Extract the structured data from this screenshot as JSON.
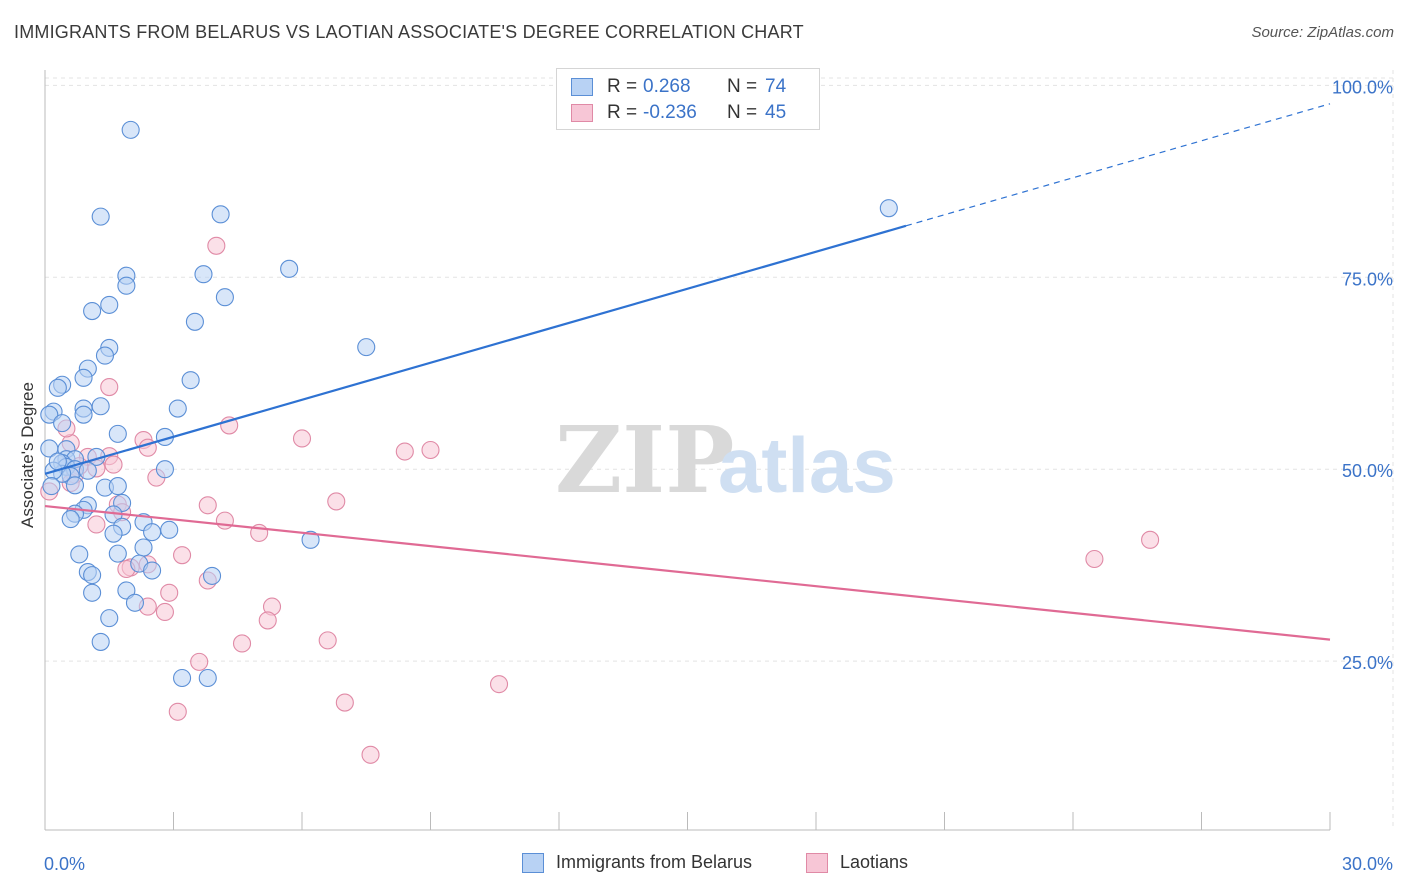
{
  "title": "IMMIGRANTS FROM BELARUS VS LAOTIAN ASSOCIATE'S DEGREE CORRELATION CHART",
  "source": "Source: ZipAtlas.com",
  "watermark": {
    "zip": "ZIP",
    "atlas": "atlas"
  },
  "colors": {
    "blue_fill": "#b8d2f4",
    "blue_stroke": "#5b8fd6",
    "blue_line": "#2e72d2",
    "pink_fill": "#f7c6d6",
    "pink_stroke": "#e08aa6",
    "pink_line": "#e06a94",
    "tick_label": "#3b73c8",
    "grid": "#e3e3e3"
  },
  "legend": {
    "rows": [
      {
        "r_label": "R =",
        "r_value": "0.268",
        "n_label": "N =",
        "n_value": "74",
        "color": "blue"
      },
      {
        "r_label": "R =",
        "r_value": "-0.236",
        "n_label": "N =",
        "n_value": "45",
        "color": "pink"
      }
    ]
  },
  "bottom_legend": [
    {
      "label": "Immigrants from Belarus",
      "color": "blue"
    },
    {
      "label": "Laotians",
      "color": "pink"
    }
  ],
  "chart_data": {
    "type": "scatter",
    "title": "IMMIGRANTS FROM BELARUS VS LAOTIAN ASSOCIATE'S DEGREE CORRELATION CHART",
    "xlabel": "",
    "ylabel": "Associate's Degree",
    "xlim": [
      0,
      30
    ],
    "ylim": [
      3,
      102
    ],
    "x_tick_labels": [
      "0.0%",
      "30.0%"
    ],
    "y_ticks": [
      25,
      50,
      75,
      100
    ],
    "y_tick_labels": [
      "25.0%",
      "50.0%",
      "75.0%",
      "100.0%"
    ],
    "grid": true,
    "legend_position": "top-center",
    "series": [
      {
        "name": "Immigrants from Belarus",
        "color": "blue",
        "trend": {
          "x": [
            0,
            20.1
          ],
          "y": [
            49.4,
            81.7
          ],
          "dashed_to": [
            30,
            97.6
          ]
        },
        "points": [
          [
            2.0,
            94.2
          ],
          [
            1.3,
            82.9
          ],
          [
            4.1,
            83.2
          ],
          [
            1.9,
            75.2
          ],
          [
            1.9,
            73.9
          ],
          [
            1.5,
            71.4
          ],
          [
            1.1,
            70.6
          ],
          [
            3.7,
            75.4
          ],
          [
            4.2,
            72.4
          ],
          [
            5.7,
            76.1
          ],
          [
            3.5,
            69.2
          ],
          [
            19.7,
            84.0
          ],
          [
            1.5,
            65.8
          ],
          [
            1.4,
            64.8
          ],
          [
            7.5,
            65.9
          ],
          [
            1.0,
            63.1
          ],
          [
            0.9,
            61.9
          ],
          [
            0.4,
            61.0
          ],
          [
            0.3,
            60.6
          ],
          [
            3.4,
            61.6
          ],
          [
            1.3,
            58.2
          ],
          [
            0.9,
            57.9
          ],
          [
            0.2,
            57.5
          ],
          [
            0.1,
            57.1
          ],
          [
            0.9,
            57.1
          ],
          [
            3.1,
            57.9
          ],
          [
            0.4,
            56.0
          ],
          [
            1.7,
            54.6
          ],
          [
            2.8,
            54.2
          ],
          [
            0.1,
            52.7
          ],
          [
            0.5,
            52.6
          ],
          [
            0.5,
            51.3
          ],
          [
            0.7,
            51.3
          ],
          [
            1.2,
            51.6
          ],
          [
            0.4,
            50.8
          ],
          [
            0.5,
            50.3
          ],
          [
            0.7,
            50.0
          ],
          [
            0.6,
            49.1
          ],
          [
            0.4,
            49.4
          ],
          [
            0.2,
            49.8
          ],
          [
            2.8,
            50.0
          ],
          [
            0.7,
            47.9
          ],
          [
            1.4,
            47.6
          ],
          [
            1.7,
            47.8
          ],
          [
            1.0,
            45.3
          ],
          [
            1.8,
            45.6
          ],
          [
            0.9,
            44.7
          ],
          [
            0.7,
            44.2
          ],
          [
            1.6,
            44.1
          ],
          [
            0.6,
            43.5
          ],
          [
            2.3,
            43.1
          ],
          [
            1.8,
            42.5
          ],
          [
            1.6,
            41.6
          ],
          [
            2.5,
            41.8
          ],
          [
            2.9,
            42.1
          ],
          [
            6.2,
            40.8
          ],
          [
            2.3,
            39.8
          ],
          [
            0.8,
            38.9
          ],
          [
            1.7,
            39.0
          ],
          [
            2.2,
            37.7
          ],
          [
            1.0,
            36.6
          ],
          [
            2.5,
            36.8
          ],
          [
            1.1,
            36.2
          ],
          [
            3.9,
            36.1
          ],
          [
            1.9,
            34.2
          ],
          [
            1.1,
            33.9
          ],
          [
            2.1,
            32.6
          ],
          [
            1.5,
            30.6
          ],
          [
            1.3,
            27.5
          ],
          [
            3.2,
            22.8
          ],
          [
            3.8,
            22.8
          ],
          [
            0.15,
            47.8
          ],
          [
            0.3,
            51.0
          ],
          [
            1.0,
            49.8
          ]
        ]
      },
      {
        "name": "Laotians",
        "color": "pink",
        "trend": {
          "x": [
            0,
            30
          ],
          "y": [
            45.2,
            27.8
          ]
        },
        "points": [
          [
            4.0,
            79.1
          ],
          [
            1.5,
            60.7
          ],
          [
            4.3,
            55.7
          ],
          [
            6.0,
            54.0
          ],
          [
            2.3,
            53.8
          ],
          [
            0.6,
            53.4
          ],
          [
            0.5,
            55.3
          ],
          [
            8.4,
            52.3
          ],
          [
            9.0,
            52.5
          ],
          [
            2.4,
            52.8
          ],
          [
            1.0,
            51.6
          ],
          [
            1.5,
            51.7
          ],
          [
            1.6,
            50.6
          ],
          [
            0.8,
            50.4
          ],
          [
            1.2,
            50.1
          ],
          [
            0.7,
            49.3
          ],
          [
            2.6,
            48.9
          ],
          [
            0.6,
            48.2
          ],
          [
            0.1,
            47.1
          ],
          [
            6.8,
            45.8
          ],
          [
            3.8,
            45.3
          ],
          [
            1.7,
            45.4
          ],
          [
            1.8,
            44.4
          ],
          [
            4.2,
            43.3
          ],
          [
            1.2,
            42.8
          ],
          [
            5.0,
            41.7
          ],
          [
            25.8,
            40.8
          ],
          [
            3.2,
            38.8
          ],
          [
            24.5,
            38.3
          ],
          [
            2.4,
            37.6
          ],
          [
            2.0,
            37.2
          ],
          [
            3.8,
            35.5
          ],
          [
            2.9,
            33.9
          ],
          [
            2.4,
            32.1
          ],
          [
            5.3,
            32.1
          ],
          [
            2.8,
            31.4
          ],
          [
            5.2,
            30.3
          ],
          [
            6.6,
            27.7
          ],
          [
            4.6,
            27.3
          ],
          [
            3.6,
            24.9
          ],
          [
            10.6,
            22.0
          ],
          [
            7.0,
            19.6
          ],
          [
            3.1,
            18.4
          ],
          [
            7.6,
            12.8
          ],
          [
            1.9,
            37.0
          ]
        ]
      }
    ]
  }
}
